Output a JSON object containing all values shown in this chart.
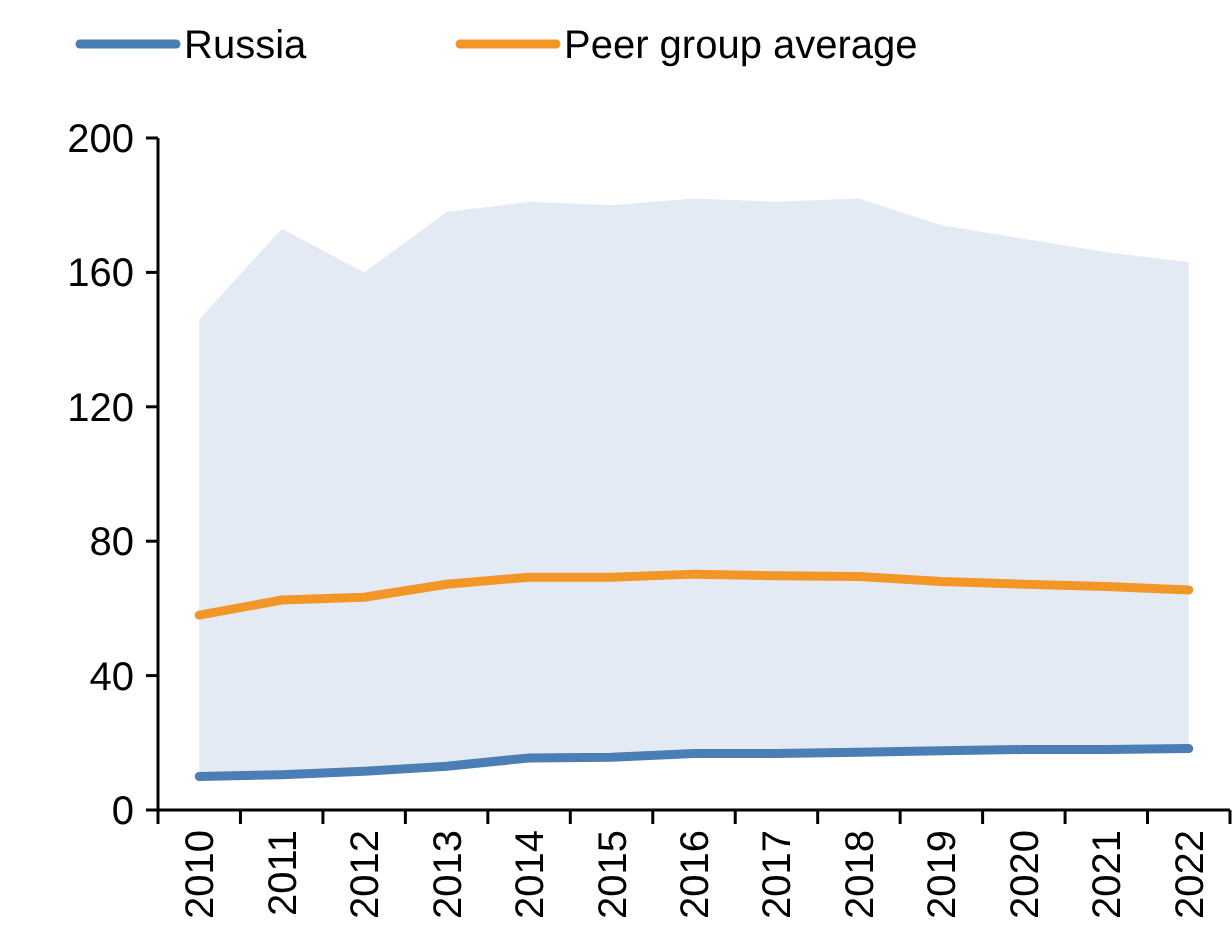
{
  "chart_data": {
    "type": "line",
    "categories": [
      "2010",
      "2011",
      "2012",
      "2013",
      "2014",
      "2015",
      "2016",
      "2017",
      "2018",
      "2019",
      "2020",
      "2021",
      "2022"
    ],
    "series": [
      {
        "color": "#e4eaf3",
        "values": [
          null,
          null,
          null,
          null,
          null,
          null,
          null,
          null,
          null,
          null,
          null,
          null,
          null
        ],
        "lower": [
          10,
          10,
          11,
          12,
          15,
          15,
          16,
          16,
          17,
          17,
          17,
          17,
          18
        ],
        "upper": [
          146,
          173,
          160,
          178,
          181,
          180,
          182,
          181,
          182,
          174,
          170,
          166,
          163
        ]
      },
      {
        "name": "Russia",
        "color": "#4a7eb5",
        "values": [
          10,
          10.5,
          11.5,
          13,
          15.5,
          15.7,
          16.8,
          16.8,
          17.2,
          17.6,
          18,
          18,
          18.3
        ]
      },
      {
        "name": "Peer group average",
        "color": "#f39628",
        "values": [
          58,
          62.5,
          63.3,
          67.2,
          69.3,
          69.3,
          70.2,
          69.7,
          69.5,
          68,
          67.2,
          66.5,
          65.5
        ]
      }
    ],
    "ylim": [
      0,
      200
    ],
    "yticks": [
      0,
      40,
      80,
      120,
      160,
      200
    ],
    "grid": false,
    "legend": "top",
    "marker": "none",
    "line_style": "solid"
  }
}
